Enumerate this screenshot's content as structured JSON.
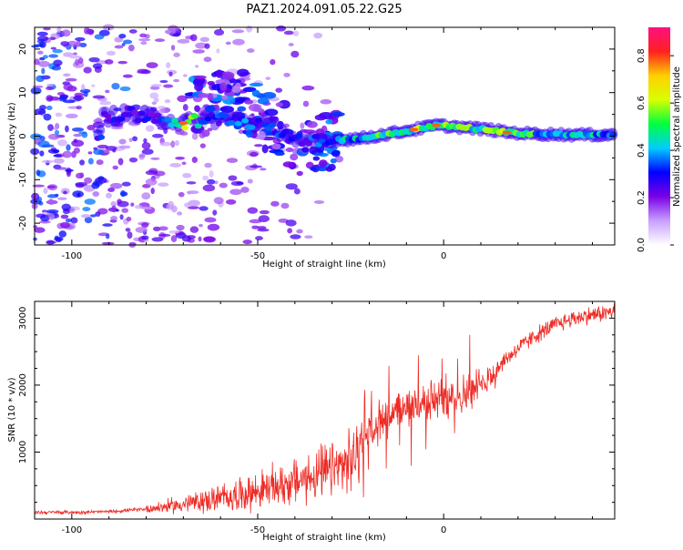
{
  "title": "PAZ1.2024.091.05.22.G25",
  "chart_data": [
    {
      "type": "heatmap",
      "name": "spectrogram",
      "xlabel": "Height of straight line (km)",
      "ylabel": "Frequency (Hz)",
      "xlim": [
        -110,
        46
      ],
      "ylim": [
        -25,
        25
      ],
      "xticks": [
        -100,
        -50,
        0
      ],
      "yticks": [
        -20,
        -10,
        0,
        10,
        20
      ],
      "colorbar": {
        "label": "Normalized spectral amplitude",
        "range": [
          0,
          0.92
        ],
        "ticks": [
          0.0,
          0.2,
          0.4,
          0.6,
          0.8
        ],
        "colormap": [
          "#ffffff",
          "#c8a0ff",
          "#7a00e6",
          "#0000ff",
          "#00ccff",
          "#00ff40",
          "#d8ff00",
          "#ffd000",
          "#ff2020",
          "#ff1080"
        ]
      },
      "ridge": {
        "description_points": [
          {
            "x": -92,
            "y": 4.5,
            "amp": 0.3
          },
          {
            "x": -85,
            "y": 5,
            "amp": 0.25
          },
          {
            "x": -75,
            "y": 4,
            "amp": 0.3
          },
          {
            "x": -70,
            "y": 3,
            "amp": 0.55
          },
          {
            "x": -60,
            "y": 4,
            "amp": 0.3
          },
          {
            "x": -55,
            "y": 4,
            "amp": 0.35
          },
          {
            "x": -45,
            "y": 2,
            "amp": 0.3
          },
          {
            "x": -38,
            "y": -2,
            "amp": 0.3
          },
          {
            "x": -30,
            "y": -1,
            "amp": 0.35
          },
          {
            "x": -22,
            "y": -0.5,
            "amp": 0.45
          },
          {
            "x": -15,
            "y": 0.5,
            "amp": 0.5
          },
          {
            "x": -8,
            "y": 1.5,
            "amp": 0.55
          },
          {
            "x": -2,
            "y": 2.5,
            "amp": 0.55
          },
          {
            "x": 5,
            "y": 2,
            "amp": 0.55
          },
          {
            "x": 12,
            "y": 1.5,
            "amp": 0.5
          },
          {
            "x": 18,
            "y": 0.8,
            "amp": 0.6
          },
          {
            "x": 25,
            "y": 0.5,
            "amp": 0.45
          },
          {
            "x": 35,
            "y": 0.3,
            "amp": 0.45
          },
          {
            "x": 46,
            "y": 0.3,
            "amp": 0.4
          }
        ]
      }
    },
    {
      "type": "line",
      "name": "snr",
      "xlabel": "Height of straight line (km)",
      "ylabel": "SNR (10 * v/v)",
      "xlim": [
        -110,
        46
      ],
      "ylim": [
        0,
        3250
      ],
      "xticks": [
        -100,
        -50,
        0
      ],
      "yticks": [
        1000,
        2000,
        3000
      ],
      "color": "#ee2a24",
      "envelope": {
        "x": [
          -110,
          -100,
          -90,
          -80,
          -70,
          -60,
          -50,
          -40,
          -30,
          -25,
          -22,
          -20,
          -15,
          -10,
          -5,
          0,
          5,
          10,
          15,
          20,
          25,
          30,
          35,
          40,
          46
        ],
        "y": [
          100,
          100,
          110,
          150,
          220,
          310,
          420,
          560,
          720,
          850,
          1100,
          1350,
          1550,
          1650,
          1750,
          1800,
          1850,
          1950,
          2300,
          2550,
          2750,
          2900,
          3000,
          3050,
          3100
        ]
      }
    }
  ]
}
